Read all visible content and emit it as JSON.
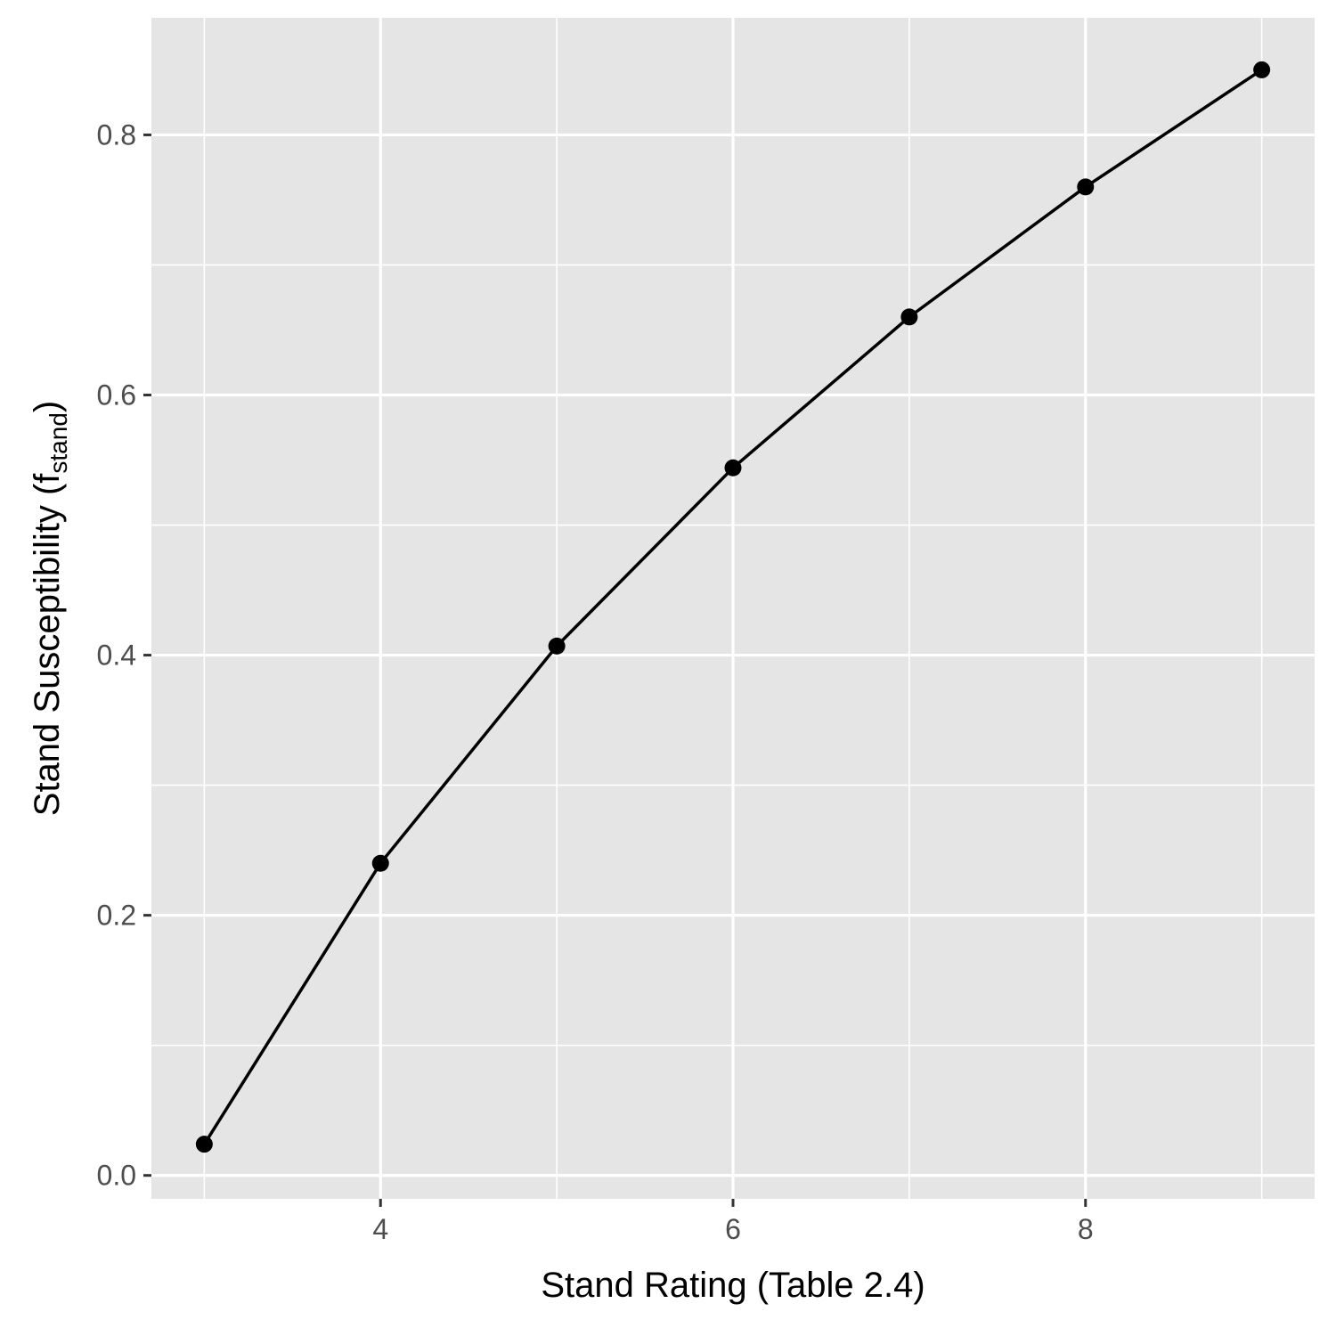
{
  "chart_data": {
    "type": "line",
    "title": "",
    "xlabel": "Stand Rating (Table 2.4)",
    "ylabel": {
      "main": "Stand Susceptibility (f",
      "subscript": "stand",
      "close": ")"
    },
    "x": [
      3,
      4,
      5,
      6,
      7,
      8,
      9
    ],
    "series": [
      {
        "values": [
          0.024,
          0.24,
          0.407,
          0.544,
          0.66,
          0.76,
          0.85
        ]
      }
    ],
    "xlim": [
      2.7,
      9.3
    ],
    "ylim": [
      -0.018,
      0.89
    ],
    "x_major_ticks": [
      4,
      6,
      8
    ],
    "x_minor_ticks": [
      3,
      5,
      7,
      9
    ],
    "y_major_ticks": [
      0.0,
      0.2,
      0.4,
      0.6,
      0.8
    ],
    "y_minor_ticks": [
      0.1,
      0.3,
      0.5,
      0.7
    ],
    "x_tick_labels": [
      "4",
      "6",
      "8"
    ],
    "y_tick_labels": [
      "0.0",
      "0.2",
      "0.4",
      "0.6",
      "0.8"
    ],
    "grid": true,
    "legend": "none",
    "colors": {
      "panel": "#e5e5e5",
      "grid": "#ffffff",
      "line": "#000000",
      "tick": "#333333"
    }
  }
}
